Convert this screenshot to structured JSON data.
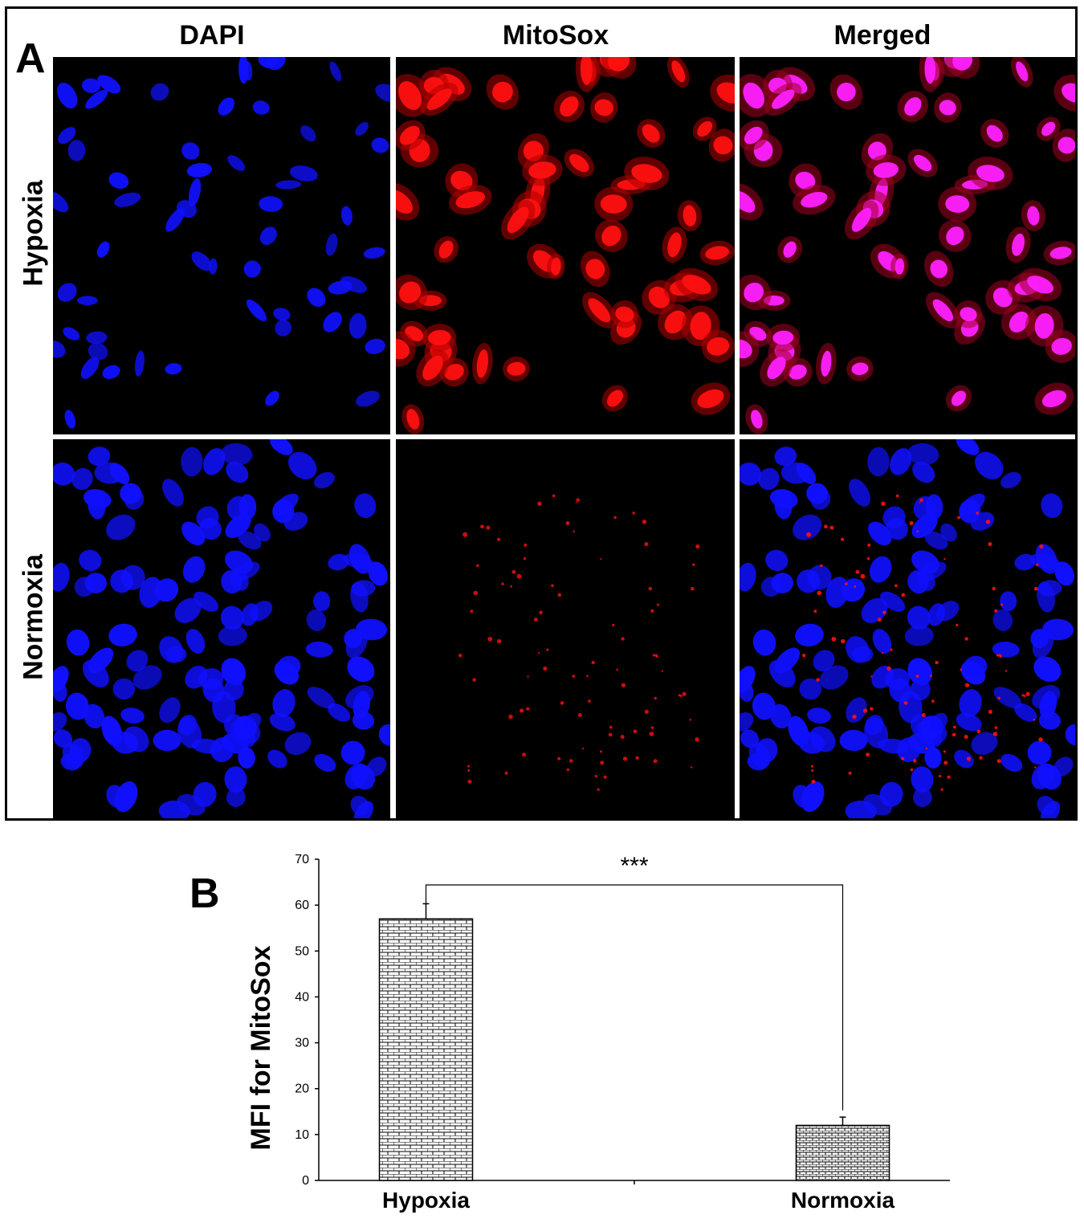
{
  "panel_a": {
    "letter": "A",
    "columns": [
      "DAPI",
      "MitoSox",
      "Merged"
    ],
    "rows": [
      "Hypoxia",
      "Normoxia"
    ]
  },
  "panel_b": {
    "letter": "B"
  },
  "chart_data": {
    "type": "bar",
    "categories": [
      "Hypoxia",
      "Normoxia"
    ],
    "values": [
      57,
      12
    ],
    "errors": [
      3.3,
      1.8
    ],
    "ylabel": "MFI for MitoSox",
    "xlabel": "",
    "ylim": [
      0,
      70
    ],
    "yticks": [
      0,
      10,
      20,
      30,
      40,
      50,
      60,
      70
    ],
    "significance": "***",
    "bar_pattern": "brick hatch",
    "grid": false
  },
  "colors": {
    "dapi": "#1010ff",
    "mitosox": "#ff1010",
    "merged_nucleus": "#ff20ff"
  }
}
